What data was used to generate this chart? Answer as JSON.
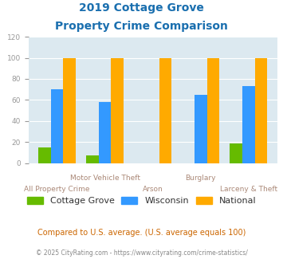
{
  "title_line1": "2019 Cottage Grove",
  "title_line2": "Property Crime Comparison",
  "title_color": "#1a6faf",
  "categories": [
    "All Property Crime",
    "Motor Vehicle Theft",
    "Arson",
    "Burglary",
    "Larceny & Theft"
  ],
  "x_labels_top": [
    "",
    "Motor Vehicle Theft",
    "",
    "Burglary",
    ""
  ],
  "x_labels_bottom": [
    "All Property Crime",
    "",
    "Arson",
    "",
    "Larceny & Theft"
  ],
  "cottage_grove": [
    15,
    7,
    0,
    0,
    19
  ],
  "wisconsin": [
    70,
    58,
    0,
    65,
    73
  ],
  "national": [
    100,
    100,
    100,
    100,
    100
  ],
  "cottage_grove_color": "#66bb00",
  "wisconsin_color": "#3399ff",
  "national_color": "#ffaa00",
  "ylim": [
    0,
    120
  ],
  "yticks": [
    0,
    20,
    40,
    60,
    80,
    100,
    120
  ],
  "background_color": "#dce9f0",
  "grid_color": "#ffffff",
  "legend_labels": [
    "Cottage Grove",
    "Wisconsin",
    "National"
  ],
  "footnote1": "Compared to U.S. average. (U.S. average equals 100)",
  "footnote2": "© 2025 CityRating.com - https://www.cityrating.com/crime-statistics/",
  "footnote1_color": "#cc6600",
  "footnote2_color": "#888888",
  "bar_width": 0.26
}
